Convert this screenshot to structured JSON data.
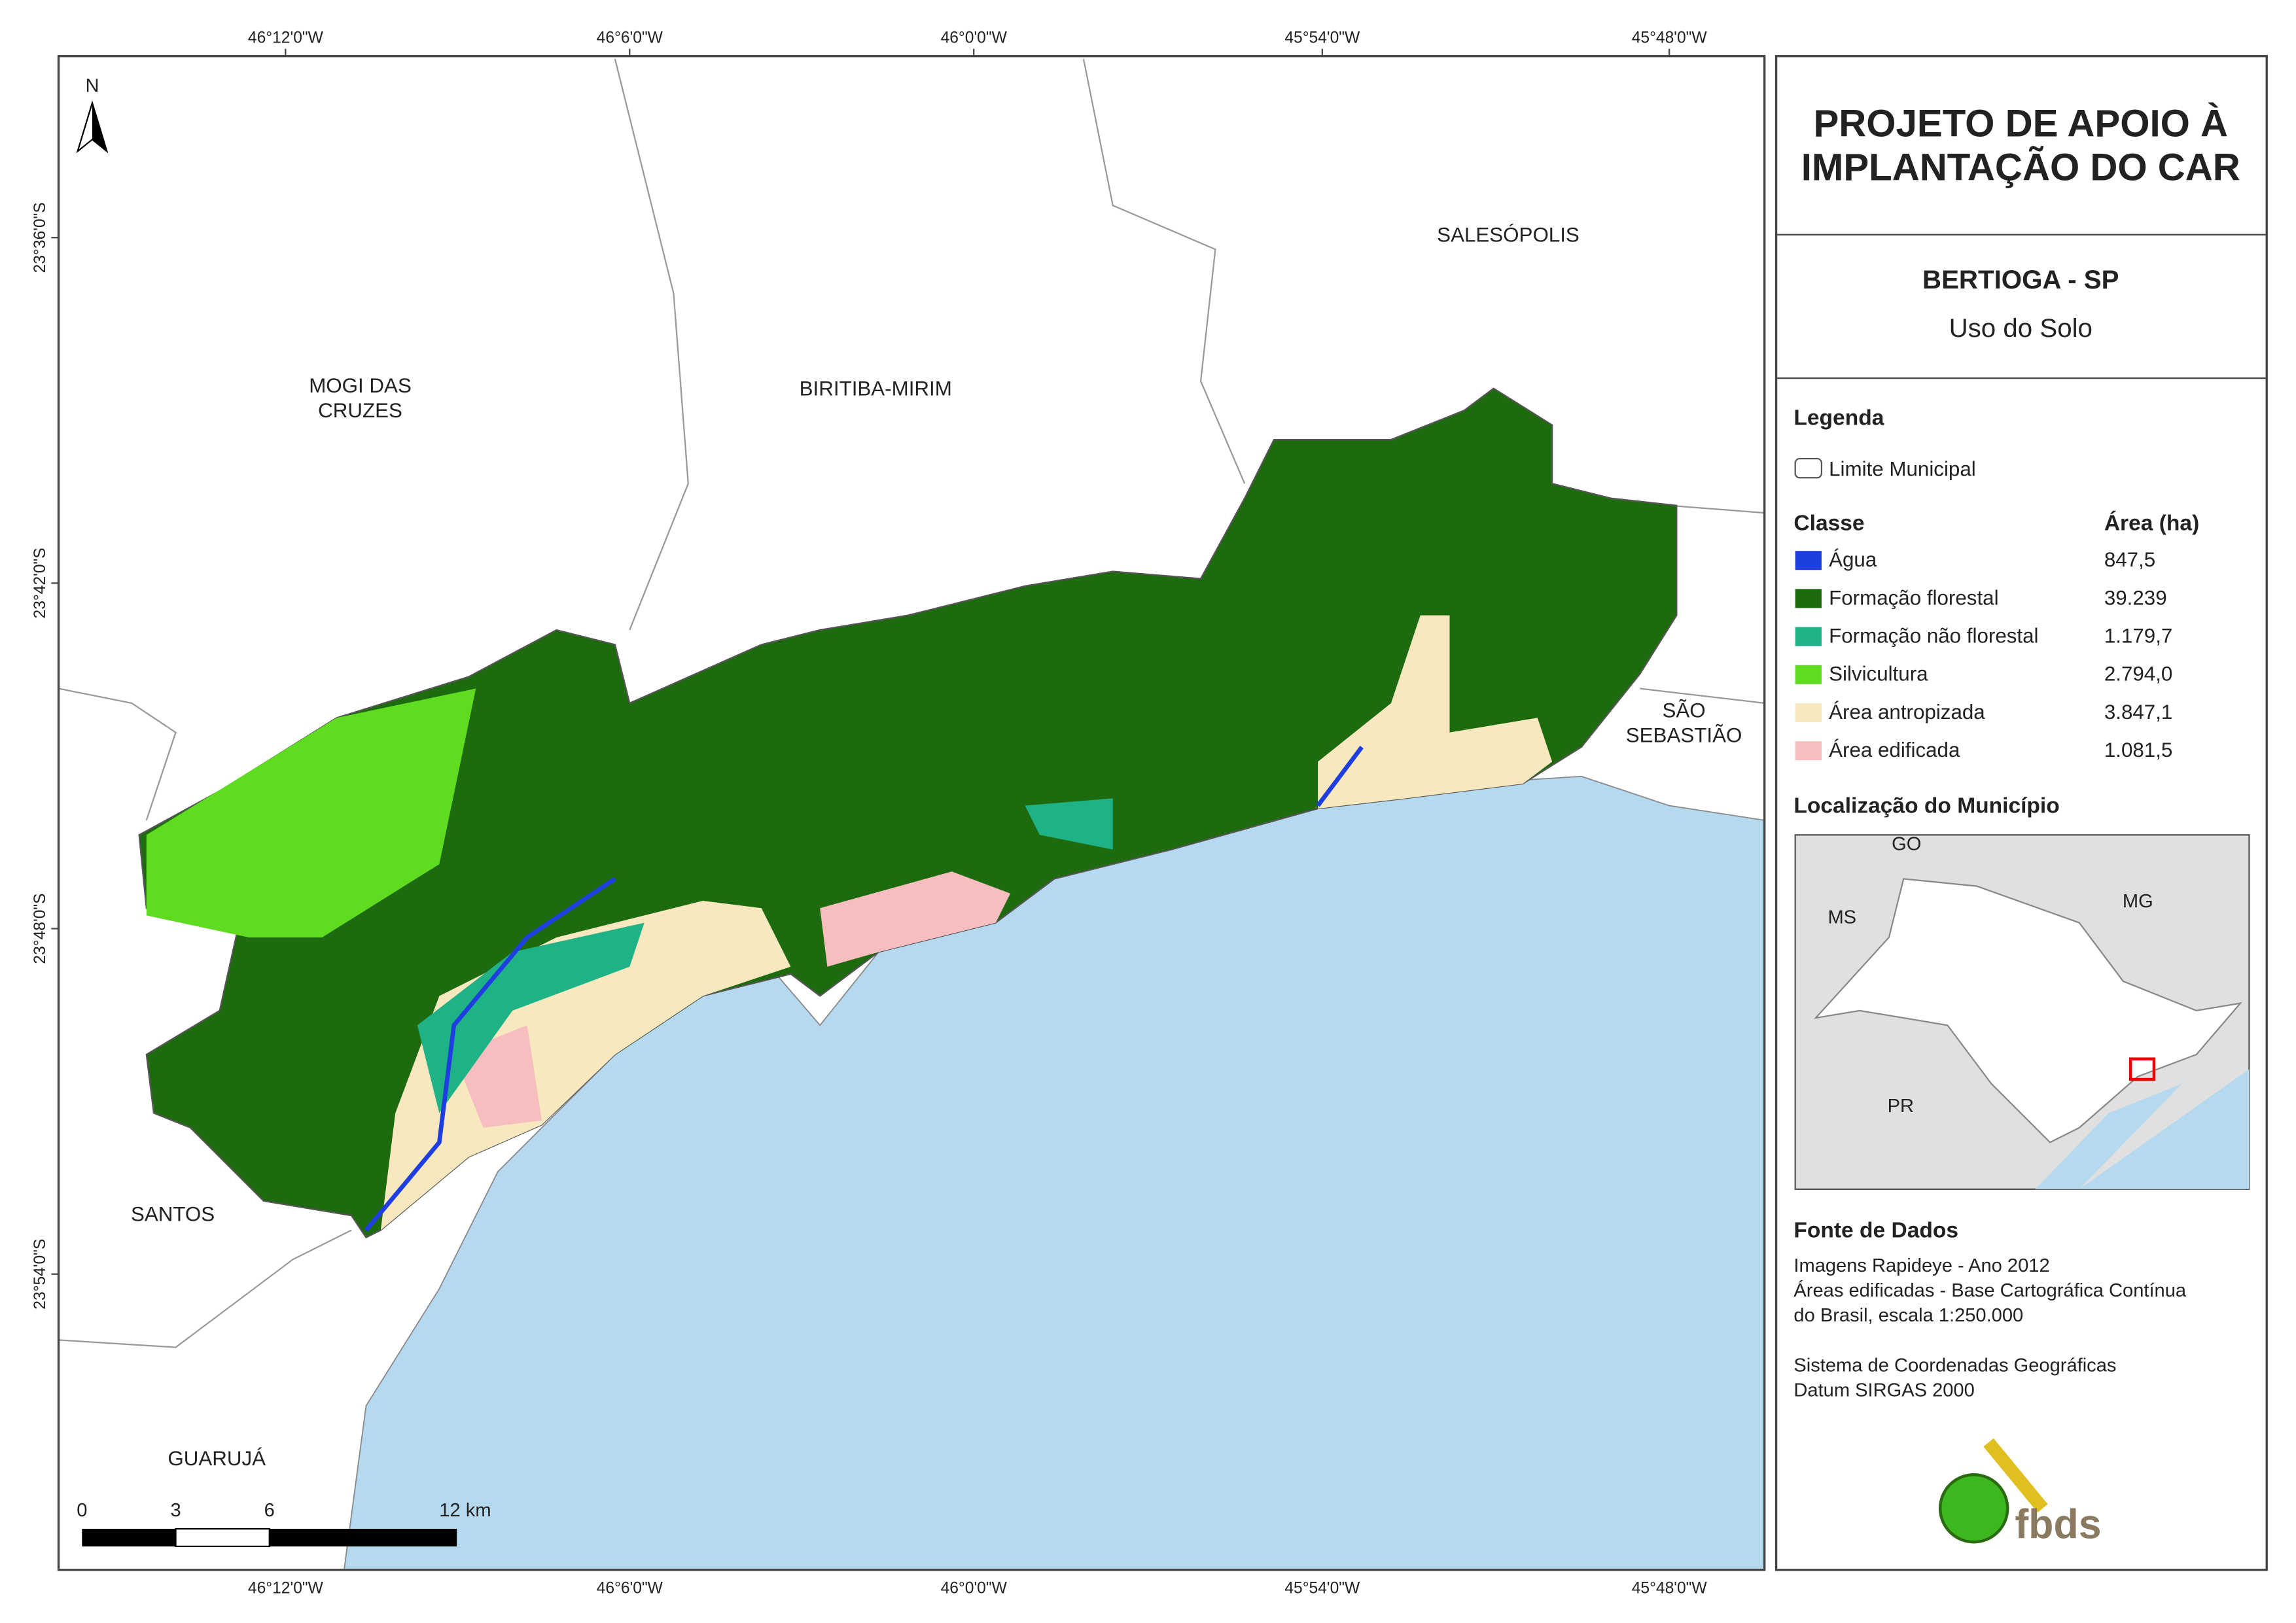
{
  "map": {
    "lon_labels": [
      "46°12'0\"W",
      "46°6'0\"W",
      "46°0'0\"W",
      "45°54'0\"W",
      "45°48'0\"W"
    ],
    "lat_labels": [
      "23°36'0\"S",
      "23°42'0\"S",
      "23°48'0\"S",
      "23°54'0\"S"
    ],
    "places": [
      "MOGI DAS",
      "CRUZES",
      "BIRITIBA-MIRIM",
      "SALESÓPOLIS",
      "SÃO",
      "SEBASTIÃO",
      "SANTOS",
      "GUARUJÁ"
    ],
    "north": "N",
    "scale_labels": [
      "0",
      "3",
      "6",
      "12 km"
    ]
  },
  "panel": {
    "title": [
      "PROJETO DE APOIO À",
      "IMPLANTAÇÃO DO CAR"
    ],
    "subtitle": "BERTIOGA - SP",
    "theme": "Uso do Solo",
    "legend_title": "Legenda",
    "boundary": "Limite Municipal",
    "class_header": "Classe",
    "area_header": "Área (ha)",
    "classes": [
      {
        "name": "Água",
        "area": "847,5",
        "color": "#1f3ee0"
      },
      {
        "name": "Formação florestal",
        "area": "39.239",
        "color": "#1e6a0e"
      },
      {
        "name": "Formação não florestal",
        "area": "1.179,7",
        "color": "#1fb287"
      },
      {
        "name": "Silvicultura",
        "area": "2.794,0",
        "color": "#5fdc1f"
      },
      {
        "name": "Área antropizada",
        "area": "3.847,1",
        "color": "#f7e8c0"
      },
      {
        "name": "Área edificada",
        "area": "1.081,5",
        "color": "#f6bebe"
      }
    ],
    "location_title": "Localização do Município",
    "inset_labels": [
      "GO",
      "MS",
      "MG",
      "PR"
    ],
    "source_title": "Fonte de Dados",
    "sources": [
      "Imagens Rapideye - Ano 2012",
      "Áreas edificadas - Base Cartográfica Contínua",
      "do Brasil, escala 1:250.000",
      "",
      "Sistema de Coordenadas Geográficas",
      "Datum SIRGAS 2000"
    ],
    "logo": "fbds"
  }
}
